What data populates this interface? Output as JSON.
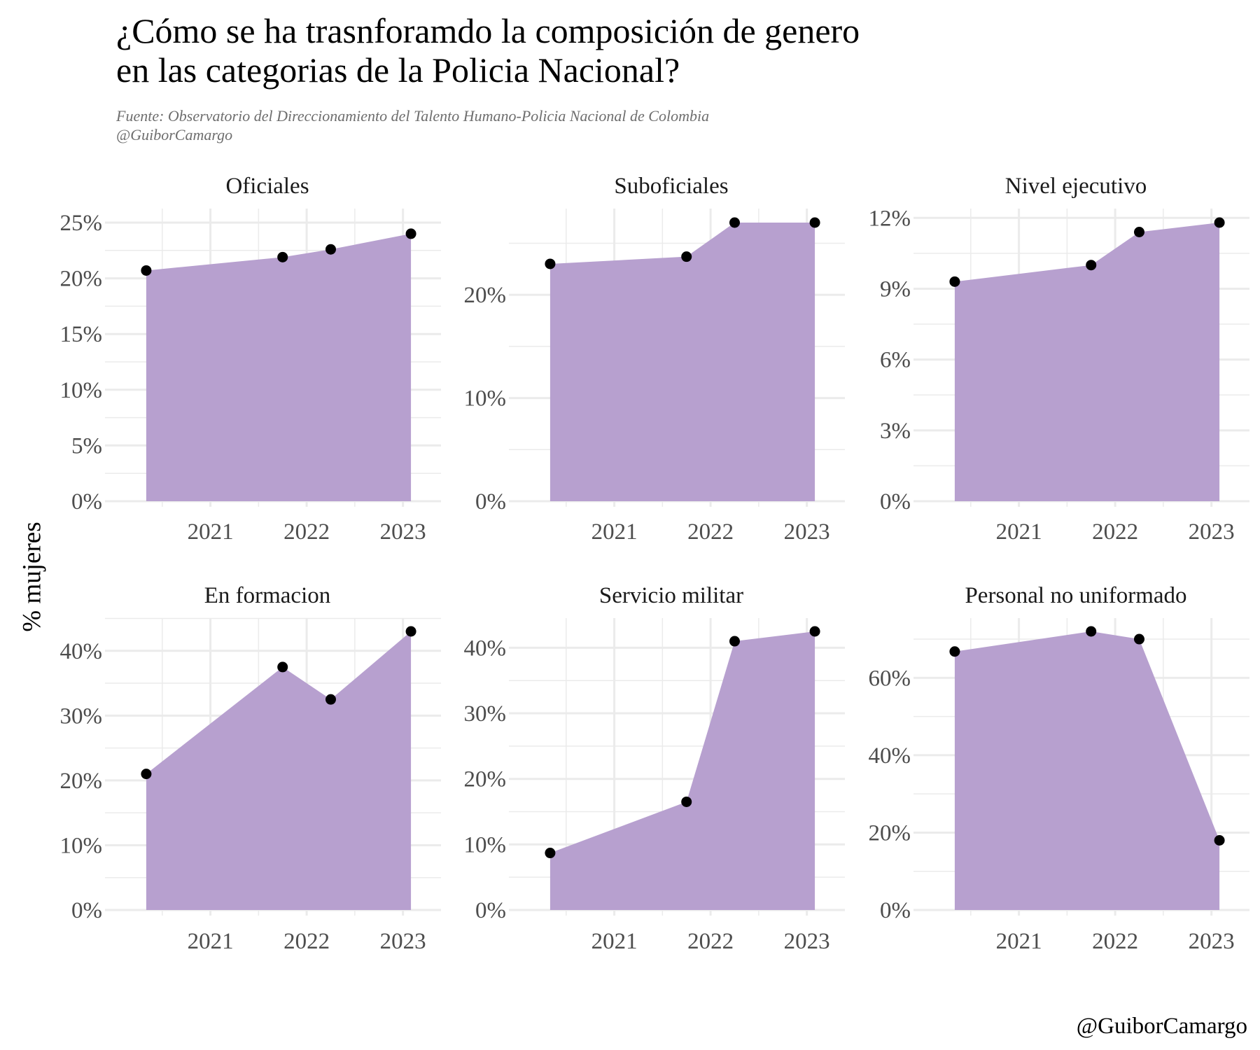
{
  "title": {
    "line1": "¿Cómo se ha trasnforamdo la composición de genero",
    "line2": "en las categorias de la Policia Nacional?"
  },
  "subtitle": {
    "line1": "Fuente: Observatorio del Direccionamiento del Talento Humano-Policia Nacional de Colombia",
    "line2": "@GuiborCamargo"
  },
  "caption": "@GuiborCamargo",
  "colors": {
    "area": "#b7a0cf",
    "point": "#000000",
    "grid": "#ebebeb"
  },
  "chart_data": {
    "type": "area",
    "ylabel": "% mujeres",
    "xlabel": "",
    "x_ticks": [
      "2021",
      "2022",
      "2023"
    ],
    "x_range": [
      "2020-03",
      "2023-04"
    ],
    "grid": true,
    "points": true,
    "panels": [
      {
        "title": "Oficiales",
        "y_ticks": [
          "0%",
          "5%",
          "10%",
          "15%",
          "20%",
          "25%"
        ],
        "ylim": [
          0,
          25
        ],
        "x": [
          "2020-05",
          "2021-10",
          "2022-04",
          "2023-02"
        ],
        "values": [
          20.7,
          21.9,
          22.6,
          24.0
        ]
      },
      {
        "title": "Suboficiales",
        "y_ticks": [
          "0%",
          "10%",
          "20%"
        ],
        "ylim": [
          0,
          27
        ],
        "x": [
          "2020-05",
          "2021-10",
          "2022-04",
          "2023-02"
        ],
        "values": [
          23.0,
          23.7,
          27.0,
          27.0
        ]
      },
      {
        "title": "Nivel ejecutivo",
        "y_ticks": [
          "0%",
          "3%",
          "6%",
          "9%",
          "12%"
        ],
        "ylim": [
          0,
          11.8
        ],
        "x": [
          "2020-05",
          "2021-10",
          "2022-04",
          "2023-02"
        ],
        "values": [
          9.3,
          10.0,
          11.4,
          11.8
        ]
      },
      {
        "title": "En formacion",
        "y_ticks": [
          "0%",
          "10%",
          "20%",
          "30%",
          "40%"
        ],
        "ylim": [
          0,
          43
        ],
        "x": [
          "2020-05",
          "2021-10",
          "2022-04",
          "2023-02"
        ],
        "values": [
          21.0,
          37.5,
          32.5,
          43.0
        ]
      },
      {
        "title": "Servicio militar",
        "y_ticks": [
          "0%",
          "10%",
          "20%",
          "30%",
          "40%"
        ],
        "ylim": [
          0,
          42.5
        ],
        "x": [
          "2020-05",
          "2021-10",
          "2022-04",
          "2023-02"
        ],
        "values": [
          8.7,
          16.5,
          41.0,
          42.5
        ]
      },
      {
        "title": "Personal no uniformado",
        "y_ticks": [
          "0%",
          "20%",
          "40%",
          "60%"
        ],
        "ylim": [
          0,
          72
        ],
        "x": [
          "2020-05",
          "2021-10",
          "2022-04",
          "2023-02"
        ],
        "values": [
          66.8,
          72.0,
          70.0,
          18.0
        ]
      }
    ]
  }
}
